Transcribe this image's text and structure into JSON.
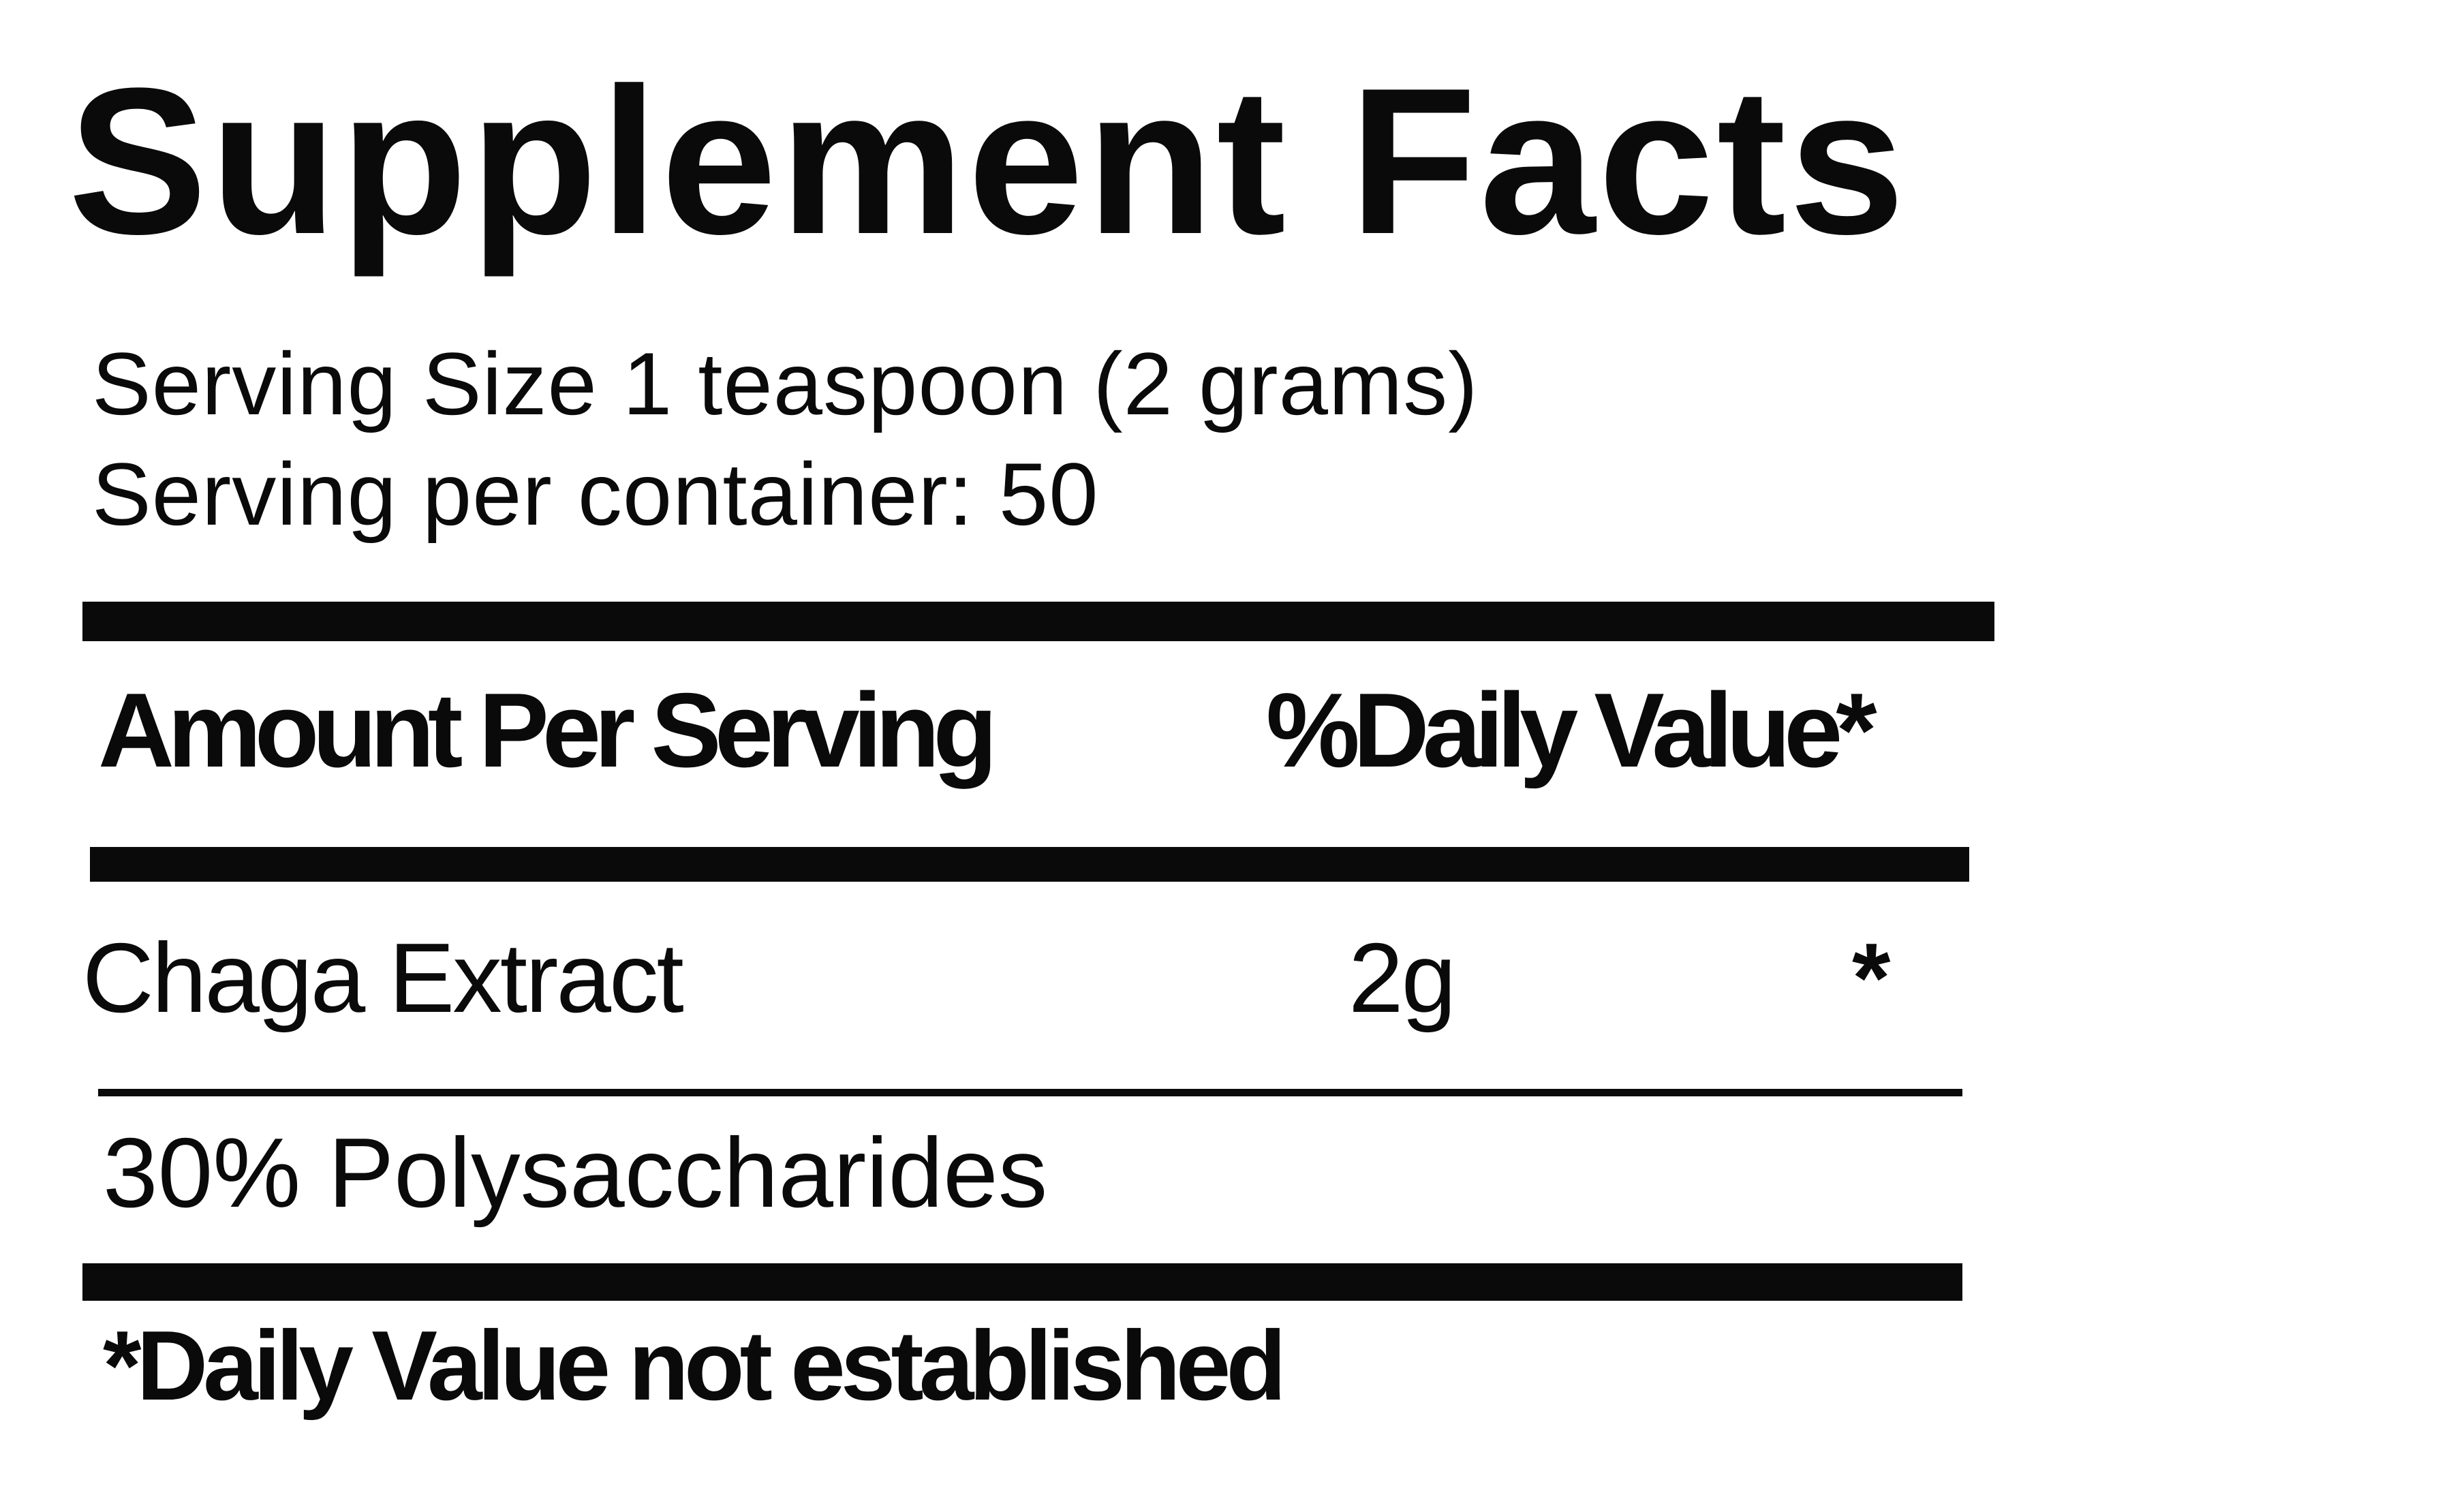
{
  "title": "Supplement Facts",
  "serving": {
    "size": "Serving Size 1 teaspoon (2 grams)",
    "per_container": "Serving per container: 50"
  },
  "header": {
    "amount": "Amount Per Serving",
    "daily_value": "%Daily Value*"
  },
  "ingredients": [
    {
      "name": "Chaga Extract",
      "amount": "2g",
      "daily_value": "*"
    }
  ],
  "sub_item": "30% Polysaccharides",
  "footnote": "*Daily Value not established"
}
